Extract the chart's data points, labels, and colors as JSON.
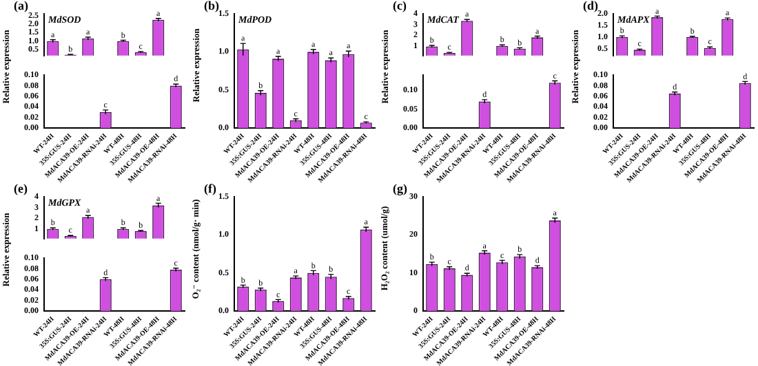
{
  "chart_data": [
    {
      "type": "bar",
      "title": "(a)",
      "subtitle": "MdSOD",
      "tick_labels": "y",
      "categories": [
        "WT-24H",
        "35S:GUS-24H",
        "MdACA39-OE-24H",
        "MdACA39-RNAi-24H",
        "WT-48H",
        "35S:GUS-48H",
        "MdACA39-OE-48H",
        "MdACA39-RNAi-48H"
      ],
      "series": [
        {
          "color": "#d04ee0",
          "values": [
            1.0,
            0.2,
            1.15,
            null,
            1.0,
            0.35,
            2.25,
            null
          ],
          "errors": [
            0.08,
            0.02,
            0.08,
            null,
            0.05,
            0.04,
            0.08,
            null
          ]
        }
      ],
      "ylim": [
        0.15,
        2.6
      ],
      "yticks": [
        0.5,
        {
          "value": 1,
          "label": "1.0"
        },
        1.5,
        {
          "value": 2,
          "label": "2.0"
        },
        2.5
      ],
      "annotations": [
        {
          "text": "a",
          "x": "WT-24H",
          "y": 1.0
        },
        {
          "text": "b",
          "x": "35S:GUS-24H",
          "y": 0.2
        },
        {
          "text": "a",
          "x": "MdACA39-OE-24H",
          "y": 1.15
        },
        {
          "text": "b",
          "x": "WT-48H",
          "y": 1.0
        },
        {
          "text": "c",
          "x": "35S:GUS-48H",
          "y": 0.35
        },
        {
          "text": "a",
          "x": "MdACA39-OE-48H",
          "y": 2.25
        }
      ]
    },
    {
      "type": "bar",
      "ylabel": "Relative expression",
      "categories": [
        "WT-24H",
        "35S:GUS-24H",
        "MdACA39-OE-24H",
        "MdACA39-RNAi-24H",
        "WT-48H",
        "35S:GUS-48H",
        "MdACA39-OE-48H",
        "MdACA39-RNAi-48H"
      ],
      "series": [
        {
          "color": "#d04ee0",
          "values": [
            null,
            null,
            null,
            0.03,
            null,
            null,
            null,
            0.08
          ],
          "errors": [
            null,
            null,
            null,
            0.004,
            null,
            null,
            null,
            0.003
          ]
        }
      ],
      "ylim": [
        0,
        0.1
      ],
      "yticks": [
        {
          "value": 0,
          "label": "0.00"
        },
        {
          "value": 0.02,
          "label": "0.02"
        },
        {
          "value": 0.04,
          "label": "0.04"
        },
        {
          "value": 0.06,
          "label": "0.06"
        },
        {
          "value": 0.08,
          "label": "0.08"
        },
        {
          "value": 0.1,
          "label": "0.10"
        }
      ],
      "annotations": [
        {
          "text": "c",
          "x": "MdACA39-RNAi-24H",
          "y": 0.03
        },
        {
          "text": "d",
          "x": "MdACA39-RNAi-48H",
          "y": 0.08
        }
      ]
    },
    {
      "type": "bar",
      "title": "(b)",
      "subtitle": "MdPOD",
      "ylabel": "Relative expression",
      "categories": [
        "WT-24H",
        "35S:GUS-24H",
        "MdACA39-OE-24H",
        "MdACA39-RNAi-24H",
        "WT-48H",
        "35S:GUS-48H",
        "MdACA39-OE-48H",
        "MdACA39-RNAi-48H"
      ],
      "series": [
        {
          "color": "#d04ee0",
          "values": [
            1.03,
            0.46,
            0.91,
            0.1,
            1.0,
            0.89,
            0.97,
            0.07
          ],
          "errors": [
            0.08,
            0.03,
            0.03,
            0.02,
            0.03,
            0.03,
            0.04,
            0.01
          ]
        }
      ],
      "ylim": [
        0,
        1.5
      ],
      "yticks": [
        {
          "value": 0,
          "label": "0.0"
        },
        0.5,
        {
          "value": 1,
          "label": "1.0"
        },
        1.5
      ],
      "annotations": [
        {
          "text": "a",
          "x": "WT-24H",
          "y": 1.03
        },
        {
          "text": "b",
          "x": "35S:GUS-24H",
          "y": 0.46
        },
        {
          "text": "a",
          "x": "MdACA39-OE-24H",
          "y": 0.91
        },
        {
          "text": "c",
          "x": "MdACA39-RNAi-24H",
          "y": 0.1
        },
        {
          "text": "a",
          "x": "WT-48H",
          "y": 1.0
        },
        {
          "text": "a",
          "x": "35S:GUS-48H",
          "y": 0.89
        },
        {
          "text": "a",
          "x": "MdACA39-OE-48H",
          "y": 0.97
        },
        {
          "text": "c",
          "x": "MdACA39-RNAi-48H",
          "y": 0.07
        }
      ]
    },
    {
      "type": "bar",
      "title": "(c)",
      "subtitle": "MdCAT",
      "tick_labels": "y",
      "categories": [
        "WT-24H",
        "35S:GUS-24H",
        "MdACA39-OE-24H",
        "MdACA39-RNAi-24H",
        "WT-48H",
        "35S:GUS-48H",
        "MdACA39-OE-48H",
        "MdACA39-RNAi-48H"
      ],
      "series": [
        {
          "color": "#d04ee0",
          "values": [
            0.95,
            0.35,
            3.35,
            null,
            1.0,
            0.75,
            1.8,
            null
          ],
          "errors": [
            0.1,
            0.05,
            0.12,
            null,
            0.1,
            0.08,
            0.12,
            null
          ]
        }
      ],
      "ylim": [
        0.1,
        4
      ],
      "yticks": [
        1,
        2,
        3,
        4
      ],
      "annotations": [
        {
          "text": "b",
          "x": "WT-24H",
          "y": 0.95
        },
        {
          "text": "c",
          "x": "35S:GUS-24H",
          "y": 0.35
        },
        {
          "text": "a",
          "x": "MdACA39-OE-24H",
          "y": 3.35
        },
        {
          "text": "b",
          "x": "WT-48H",
          "y": 1.0
        },
        {
          "text": "b",
          "x": "35S:GUS-48H",
          "y": 0.75
        },
        {
          "text": "a",
          "x": "MdACA39-OE-48H",
          "y": 1.8
        }
      ]
    },
    {
      "type": "bar",
      "ylabel": "Relative expression",
      "categories": [
        "WT-24H",
        "35S:GUS-24H",
        "MdACA39-OE-24H",
        "MdACA39-RNAi-24H",
        "WT-48H",
        "35S:GUS-48H",
        "MdACA39-OE-48H",
        "MdACA39-RNAi-48H"
      ],
      "series": [
        {
          "color": "#d04ee0",
          "values": [
            null,
            null,
            null,
            0.07,
            null,
            null,
            null,
            0.12
          ],
          "errors": [
            null,
            null,
            null,
            0.005,
            null,
            null,
            null,
            0.005
          ]
        }
      ],
      "ylim": [
        0,
        0.14
      ],
      "yticks": [
        {
          "value": 0,
          "label": "0.00"
        },
        {
          "value": 0.05,
          "label": "0.05"
        },
        {
          "value": 0.1,
          "label": "0.10"
        }
      ],
      "annotations": [
        {
          "text": "d",
          "x": "MdACA39-RNAi-24H",
          "y": 0.07
        },
        {
          "text": "c",
          "x": "MdACA39-RNAi-48H",
          "y": 0.12
        }
      ]
    },
    {
      "type": "bar",
      "title": "(d)",
      "subtitle": "MdAPX",
      "tick_labels": "y",
      "categories": [
        "WT-24H",
        "35S:GUS-24H",
        "MdACA39-OE-24H",
        "MdACA39-RNAi-24H",
        "WT-48H",
        "35S:GUS-48H",
        "MdACA39-OE-48H",
        "MdACA39-RNAi-48H"
      ],
      "series": [
        {
          "color": "#d04ee0",
          "values": [
            1.0,
            0.45,
            1.85,
            null,
            1.0,
            0.53,
            1.77,
            null
          ],
          "errors": [
            0.05,
            0.03,
            0.05,
            null,
            0.03,
            0.04,
            0.05,
            null
          ]
        }
      ],
      "ylim": [
        0.2,
        2
      ],
      "yticks": [
        0.5,
        {
          "value": 1,
          "label": "1.0"
        },
        1.5,
        {
          "value": 2,
          "label": "2.0"
        }
      ],
      "annotations": [
        {
          "text": "b",
          "x": "WT-24H",
          "y": 1.0
        },
        {
          "text": "c",
          "x": "35S:GUS-24H",
          "y": 0.45
        },
        {
          "text": "a",
          "x": "MdACA39-OE-24H",
          "y": 1.85
        },
        {
          "text": "b",
          "x": "WT-48H",
          "y": 1.0
        },
        {
          "text": "c",
          "x": "35S:GUS-48H",
          "y": 0.53
        },
        {
          "text": "a",
          "x": "MdACA39-OE-48H",
          "y": 1.77
        }
      ]
    },
    {
      "type": "bar",
      "ylabel": "Relative expression",
      "categories": [
        "WT-24H",
        "35S:GUS-24H",
        "MdACA39-OE-24H",
        "MdACA39-RNAi-24H",
        "WT-48H",
        "35S:GUS-48H",
        "MdACA39-OE-48H",
        "MdACA39-RNAi-48H"
      ],
      "series": [
        {
          "color": "#d04ee0",
          "values": [
            null,
            null,
            null,
            0.065,
            null,
            null,
            null,
            0.085
          ],
          "errors": [
            null,
            null,
            null,
            0.003,
            null,
            null,
            null,
            0.003
          ]
        }
      ],
      "ylim": [
        0,
        0.1
      ],
      "yticks": [
        {
          "value": 0,
          "label": "0.00"
        },
        {
          "value": 0.02,
          "label": "0.02"
        },
        {
          "value": 0.04,
          "label": "0.04"
        },
        {
          "value": 0.06,
          "label": "0.06"
        },
        {
          "value": 0.08,
          "label": "0.08"
        },
        {
          "value": 0.1,
          "label": "0.10"
        }
      ],
      "annotations": [
        {
          "text": "d",
          "x": "MdACA39-RNAi-24H",
          "y": 0.065
        },
        {
          "text": "d",
          "x": "MdACA39-RNAi-48H",
          "y": 0.085
        }
      ]
    },
    {
      "type": "bar",
      "title": "(e)",
      "subtitle": "MdGPX",
      "tick_labels": "y",
      "categories": [
        "WT-24H",
        "35S:GUS-24H",
        "MdACA39-OE-24H",
        "MdACA39-RNAi-24H",
        "WT-48H",
        "35S:GUS-48H",
        "MdACA39-OE-48H",
        "MdACA39-RNAi-48H"
      ],
      "series": [
        {
          "color": "#d04ee0",
          "values": [
            1.0,
            0.35,
            2.1,
            null,
            1.0,
            0.8,
            3.2,
            null
          ],
          "errors": [
            0.1,
            0.04,
            0.15,
            null,
            0.1,
            0.06,
            0.2,
            null
          ]
        }
      ],
      "ylim": [
        0.1,
        4
      ],
      "yticks": [
        1,
        2,
        3,
        4
      ],
      "annotations": [
        {
          "text": "b",
          "x": "WT-24H",
          "y": 1.0
        },
        {
          "text": "c",
          "x": "35S:GUS-24H",
          "y": 0.35
        },
        {
          "text": "a",
          "x": "MdACA39-OE-24H",
          "y": 2.1
        },
        {
          "text": "b",
          "x": "WT-48H",
          "y": 1.0
        },
        {
          "text": "b",
          "x": "35S:GUS-48H",
          "y": 0.8
        },
        {
          "text": "a",
          "x": "MdACA39-OE-48H",
          "y": 3.2
        }
      ]
    },
    {
      "type": "bar",
      "ylabel": "Relative expression",
      "categories": [
        "WT-24H",
        "35S:GUS-24H",
        "MdACA39-OE-24H",
        "MdACA39-RNAi-24H",
        "WT-48H",
        "35S:GUS-48H",
        "MdACA39-OE-48H",
        "MdACA39-RNAi-48H"
      ],
      "series": [
        {
          "color": "#d04ee0",
          "values": [
            null,
            null,
            null,
            0.06,
            null,
            null,
            null,
            0.078
          ],
          "errors": [
            null,
            null,
            null,
            0.003,
            null,
            null,
            null,
            0.003
          ]
        }
      ],
      "ylim": [
        0,
        0.1
      ],
      "yticks": [
        {
          "value": 0,
          "label": "0.00"
        },
        {
          "value": 0.02,
          "label": "0.02"
        },
        {
          "value": 0.04,
          "label": "0.04"
        },
        {
          "value": 0.06,
          "label": "0.06"
        },
        {
          "value": 0.08,
          "label": "0.08"
        },
        {
          "value": 0.1,
          "label": "0.10"
        }
      ],
      "annotations": [
        {
          "text": "d",
          "x": "MdACA39-RNAi-24H",
          "y": 0.06
        },
        {
          "text": "c",
          "x": "MdACA39-RNAi-48H",
          "y": 0.078
        }
      ]
    },
    {
      "type": "bar",
      "title": "(f)",
      "ylabel": "O₂⁻ content (nmol/g· min)",
      "categories": [
        "WT-24H",
        "35S:GUS-24H",
        "MdACA39-OE-24H",
        "MdACA39-RNAi-24H",
        "WT-48H",
        "35S:GUS-48H",
        "MdACA39-OE-48H",
        "MdACA39-RNAi-48H"
      ],
      "series": [
        {
          "color": "#d04ee0",
          "values": [
            0.32,
            0.28,
            0.13,
            0.44,
            0.5,
            0.45,
            0.17,
            1.07
          ],
          "errors": [
            0.02,
            0.02,
            0.02,
            0.02,
            0.03,
            0.03,
            0.02,
            0.03
          ]
        }
      ],
      "ylim": [
        0,
        1.5
      ],
      "yticks": [
        {
          "value": 0,
          "label": "0.0"
        },
        0.5,
        {
          "value": 1,
          "label": "1.0"
        },
        1.5
      ],
      "annotations": [
        {
          "text": "b",
          "x": "WT-24H",
          "y": 0.32
        },
        {
          "text": "b",
          "x": "35S:GUS-24H",
          "y": 0.28
        },
        {
          "text": "c",
          "x": "MdACA39-OE-24H",
          "y": 0.13
        },
        {
          "text": "a",
          "x": "MdACA39-RNAi-24H",
          "y": 0.44
        },
        {
          "text": "b",
          "x": "WT-48H",
          "y": 0.5
        },
        {
          "text": "b",
          "x": "35S:GUS-48H",
          "y": 0.45
        },
        {
          "text": "c",
          "x": "MdACA39-OE-48H",
          "y": 0.17
        },
        {
          "text": "a",
          "x": "MdACA39-RNAi-48H",
          "y": 1.07
        }
      ]
    },
    {
      "type": "bar",
      "title": "(g)",
      "ylabel": "H₂O₂ content (umol/g)",
      "categories": [
        "WT-24H",
        "35S:GUS-24H",
        "MdACA39-OE-24H",
        "MdACA39-RNAi-24H",
        "WT-48H",
        "35S:GUS-48H",
        "MdACA39-OE-48H",
        "MdACA39-RNAi-48H"
      ],
      "series": [
        {
          "color": "#d04ee0",
          "values": [
            12.3,
            11.2,
            9.5,
            15.3,
            12.8,
            14.3,
            11.5,
            23.8
          ],
          "errors": [
            0.5,
            0.4,
            0.4,
            0.5,
            0.5,
            0.5,
            0.4,
            0.6
          ]
        }
      ],
      "ylim": [
        0,
        30
      ],
      "yticks": [
        0,
        10,
        20,
        30
      ],
      "annotations": [
        {
          "text": "b",
          "x": "WT-24H",
          "y": 12.3
        },
        {
          "text": "c",
          "x": "35S:GUS-24H",
          "y": 11.2
        },
        {
          "text": "d",
          "x": "MdACA39-OE-24H",
          "y": 9.5
        },
        {
          "text": "a",
          "x": "MdACA39-RNAi-24H",
          "y": 15.3
        },
        {
          "text": "c",
          "x": "WT-48H",
          "y": 12.8
        },
        {
          "text": "b",
          "x": "35S:GUS-48H",
          "y": 14.3
        },
        {
          "text": "d",
          "x": "MdACA39-OE-48H",
          "y": 11.5
        },
        {
          "text": "a",
          "x": "MdACA39-RNAi-48H",
          "y": 23.8
        }
      ]
    }
  ]
}
